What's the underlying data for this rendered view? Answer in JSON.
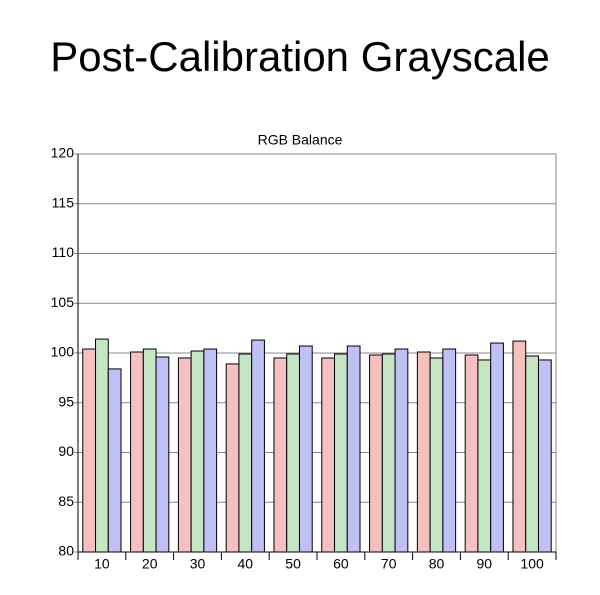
{
  "chart_data": {
    "type": "bar",
    "title": "Post-Calibration Grayscale",
    "subtitle": "RGB Balance",
    "categories": [
      "10",
      "20",
      "30",
      "40",
      "50",
      "60",
      "70",
      "80",
      "90",
      "100"
    ],
    "series": [
      {
        "color": "#f6c0c0",
        "values": [
          100.4,
          100.1,
          99.5,
          98.9,
          99.5,
          99.5,
          99.8,
          100.1,
          99.8,
          101.2
        ]
      },
      {
        "color": "#c4e6c4",
        "values": [
          101.4,
          100.4,
          100.2,
          99.9,
          99.9,
          99.9,
          99.9,
          99.5,
          99.3,
          99.7
        ]
      },
      {
        "color": "#c0c0f6",
        "values": [
          98.4,
          99.6,
          100.4,
          101.3,
          100.7,
          100.7,
          100.4,
          100.4,
          101.0,
          99.3
        ]
      }
    ],
    "ylim": [
      80,
      120
    ],
    "yticks": [
      80,
      85,
      90,
      95,
      100,
      105,
      110,
      115,
      120
    ],
    "grid": true
  }
}
